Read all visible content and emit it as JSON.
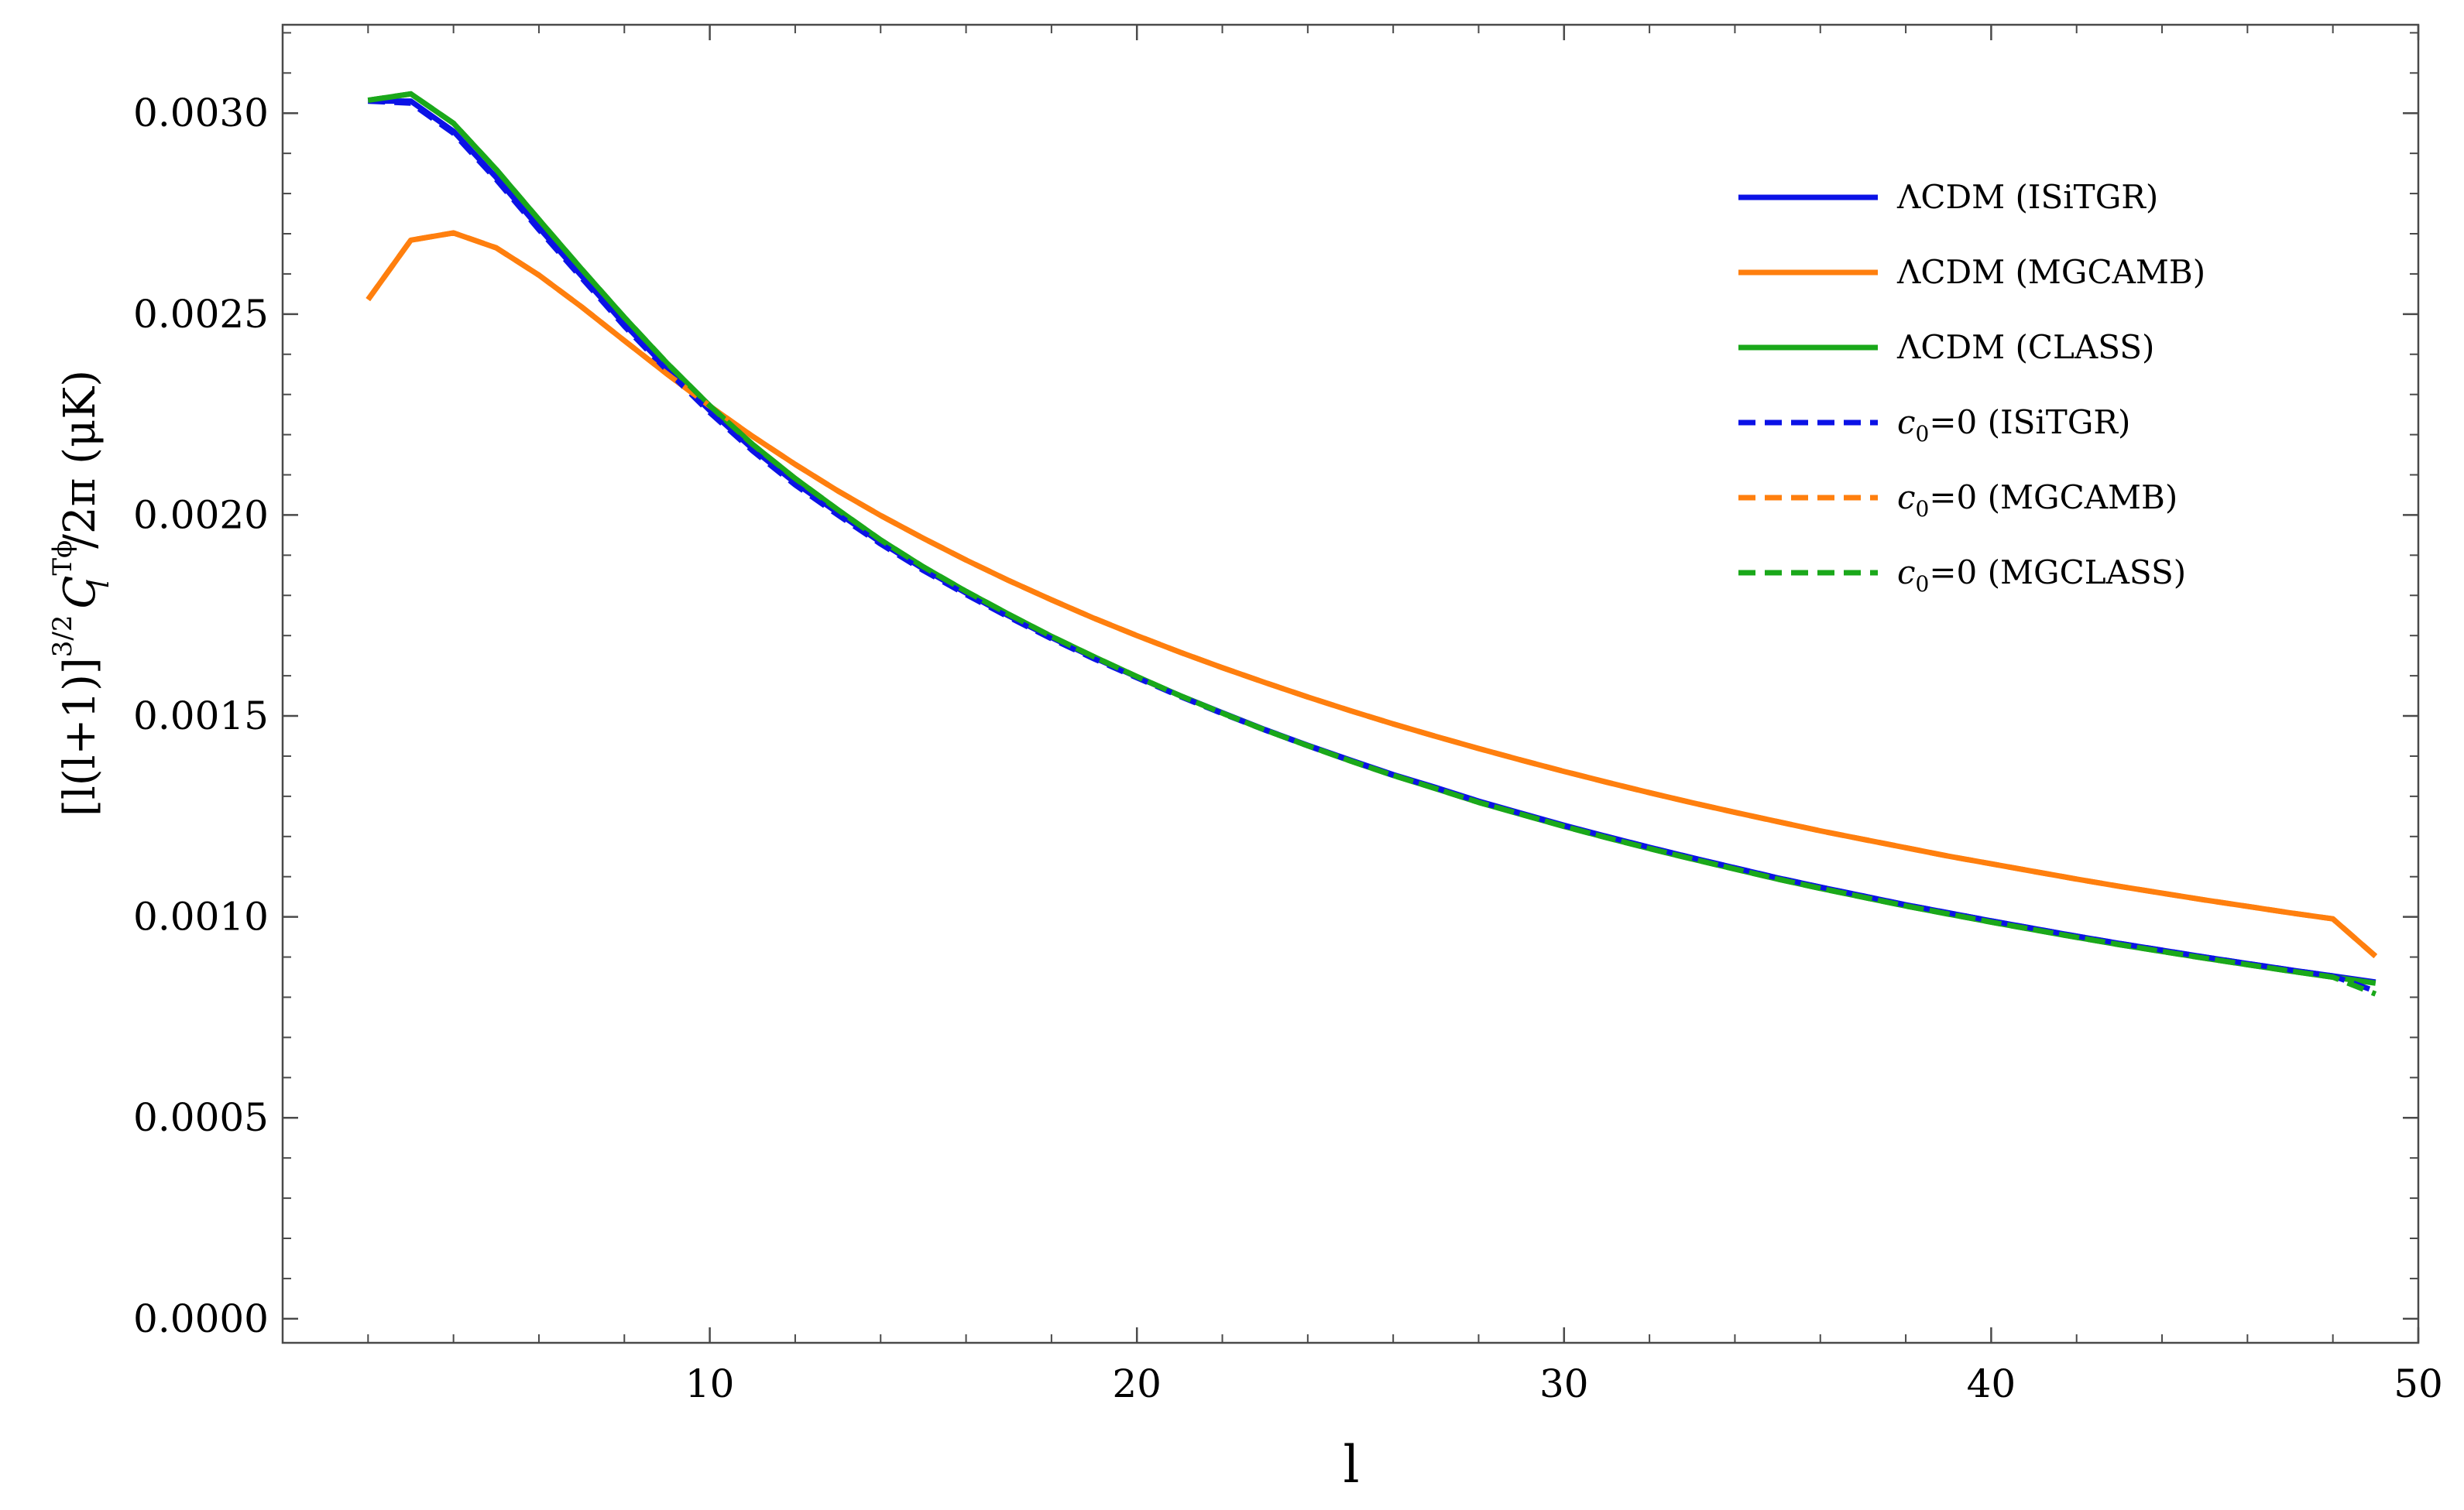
{
  "chart_data": {
    "type": "line",
    "title": "",
    "xlabel": "l",
    "ylabel": {
      "base": "[l(l+1)]",
      "exponent": "3/2",
      "symbol": "C",
      "subscript": "l",
      "superscript": "Tϕ",
      "suffix": "/2π  (μK)"
    },
    "xlim": [
      0,
      50
    ],
    "ylim": [
      -6e-05,
      0.00322
    ],
    "xticks": [
      10,
      20,
      30,
      40,
      50
    ],
    "xtick_labels": [
      "10",
      "20",
      "30",
      "40",
      "50"
    ],
    "yticks": [
      0,
      0.0005,
      0.001,
      0.0015,
      0.002,
      0.0025,
      0.003
    ],
    "ytick_labels": [
      "0.0000",
      "0.0005",
      "0.0010",
      "0.0015",
      "0.0020",
      "0.0025",
      "0.0030"
    ],
    "grid": false,
    "legend_position": "top-right",
    "x": [
      2,
      3,
      4,
      5,
      6,
      7,
      8,
      9,
      10,
      11,
      12,
      13,
      14,
      15,
      16,
      17,
      18,
      19,
      20,
      21,
      22,
      23,
      24,
      25,
      26,
      27,
      28,
      29,
      30,
      31,
      32,
      33,
      34,
      35,
      36,
      37,
      38,
      39,
      40,
      41,
      42,
      43,
      44,
      45,
      46,
      47,
      48,
      49
    ],
    "series": [
      {
        "name": "ΛCDM (ISiTGR)",
        "label_main": "ΛCDM (ISiTGR)",
        "color": "#0b12e6",
        "dash": "solid",
        "values": [
          0.00303,
          0.00303,
          0.002955,
          0.00284,
          0.002715,
          0.002595,
          0.002475,
          0.002365,
          0.00226,
          0.002165,
          0.00208,
          0.002005,
          0.001932,
          0.001866,
          0.001806,
          0.001749,
          0.001695,
          0.001645,
          0.001597,
          0.001551,
          0.001508,
          0.001466,
          0.001427,
          0.00139,
          0.001354,
          0.001322,
          0.001288,
          0.001258,
          0.001228,
          0.0012,
          0.001173,
          0.001147,
          0.001122,
          0.001097,
          0.001074,
          0.001052,
          0.00103,
          0.00101,
          0.00099,
          0.000971,
          0.000952,
          0.000934,
          0.000917,
          0.0009,
          0.000884,
          0.000868,
          0.000853,
          0.000838
        ]
      },
      {
        "name": "ΛCDM (MGCAMB)",
        "label_main": "ΛCDM (MGCAMB)",
        "color": "#ff7f0e",
        "dash": "solid",
        "values": [
          0.002536,
          0.002684,
          0.002702,
          0.002665,
          0.002597,
          0.002518,
          0.002434,
          0.002351,
          0.002271,
          0.002196,
          0.002126,
          0.00206,
          0.001999,
          0.001942,
          0.001888,
          0.001837,
          0.001789,
          0.001743,
          0.0017,
          0.001659,
          0.00162,
          0.001583,
          0.001547,
          0.001513,
          0.00148,
          0.001449,
          0.001419,
          0.00139,
          0.001362,
          0.001335,
          0.001309,
          0.001284,
          0.00126,
          0.001237,
          0.001214,
          0.001193,
          0.001172,
          0.001151,
          0.001132,
          0.001113,
          0.001094,
          0.001076,
          0.001059,
          0.001042,
          0.001026,
          0.00101,
          0.000995,
          0.000902
        ]
      },
      {
        "name": "ΛCDM (CLASS)",
        "label_main": "ΛCDM (CLASS)",
        "color": "#1aa81a",
        "dash": "solid",
        "values": [
          0.003032,
          0.003048,
          0.002975,
          0.00286,
          0.002735,
          0.002612,
          0.002492,
          0.002378,
          0.002272,
          0.002176,
          0.002091,
          0.002013,
          0.001938,
          0.001871,
          0.00181,
          0.001753,
          0.001698,
          0.001647,
          0.001598,
          0.001551,
          0.001507,
          0.001465,
          0.001426,
          0.001388,
          0.001352,
          0.001319,
          0.001285,
          0.001255,
          0.001225,
          0.001197,
          0.00117,
          0.001144,
          0.001119,
          0.001094,
          0.001071,
          0.001049,
          0.001027,
          0.001007,
          0.000987,
          0.000968,
          0.000949,
          0.000931,
          0.000914,
          0.000897,
          0.000881,
          0.000865,
          0.00085,
          0.000835
        ]
      },
      {
        "name": "c0=0 (ISiTGR)",
        "label_main": "c",
        "label_sub": "0",
        "label_rest": "=0 (ISiTGR)",
        "color": "#0b12e6",
        "dash": "dashed",
        "values": [
          0.00303,
          0.003025,
          0.00295,
          0.002835,
          0.00271,
          0.00259,
          0.00247,
          0.00236,
          0.002255,
          0.00216,
          0.002075,
          0.002,
          0.001928,
          0.001862,
          0.001802,
          0.001746,
          0.001692,
          0.001642,
          0.001595,
          0.001549,
          0.001506,
          0.001465,
          0.001426,
          0.001389,
          0.001353,
          0.001321,
          0.001287,
          0.001257,
          0.001227,
          0.0012,
          0.001173,
          0.001147,
          0.001122,
          0.001097,
          0.001074,
          0.001052,
          0.00103,
          0.00101,
          0.00099,
          0.000971,
          0.000952,
          0.000934,
          0.000917,
          0.0009,
          0.000884,
          0.000868,
          0.000853,
          0.000815
        ]
      },
      {
        "name": "c0=0 (MGCAMB)",
        "label_main": "c",
        "label_sub": "0",
        "label_rest": "=0 (MGCAMB)",
        "color": "#ff7f0e",
        "dash": "dashed",
        "values": [
          0.002536,
          0.002684,
          0.002702,
          0.002665,
          0.002597,
          0.002518,
          0.002434,
          0.002351,
          0.002271,
          0.002196,
          0.002126,
          0.00206,
          0.001999,
          0.001942,
          0.001888,
          0.001837,
          0.001789,
          0.001743,
          0.0017,
          0.001659,
          0.00162,
          0.001583,
          0.001547,
          0.001513,
          0.00148,
          0.001449,
          0.001419,
          0.00139,
          0.001362,
          0.001335,
          0.001309,
          0.001284,
          0.00126,
          0.001237,
          0.001214,
          0.001193,
          0.001172,
          0.001151,
          0.001132,
          0.001113,
          0.001094,
          0.001076,
          0.001059,
          0.001042,
          0.001026,
          0.00101,
          0.000995,
          0.000902
        ]
      },
      {
        "name": "c0=0 (MGCLASS)",
        "label_main": "c",
        "label_sub": "0",
        "label_rest": "=0 (MGCLASS)",
        "color": "#1aa81a",
        "dash": "dashed",
        "values": [
          0.003032,
          0.003048,
          0.002975,
          0.00286,
          0.002735,
          0.002612,
          0.002492,
          0.002378,
          0.002272,
          0.002176,
          0.002091,
          0.002013,
          0.001938,
          0.001871,
          0.00181,
          0.001753,
          0.001698,
          0.001647,
          0.001598,
          0.001551,
          0.001507,
          0.001465,
          0.001426,
          0.001388,
          0.001352,
          0.001319,
          0.001285,
          0.001255,
          0.001225,
          0.001197,
          0.00117,
          0.001144,
          0.001119,
          0.001094,
          0.001071,
          0.001049,
          0.001027,
          0.001007,
          0.000987,
          0.000968,
          0.000949,
          0.000931,
          0.000914,
          0.000897,
          0.000881,
          0.000865,
          0.00085,
          0.000808
        ]
      }
    ]
  }
}
